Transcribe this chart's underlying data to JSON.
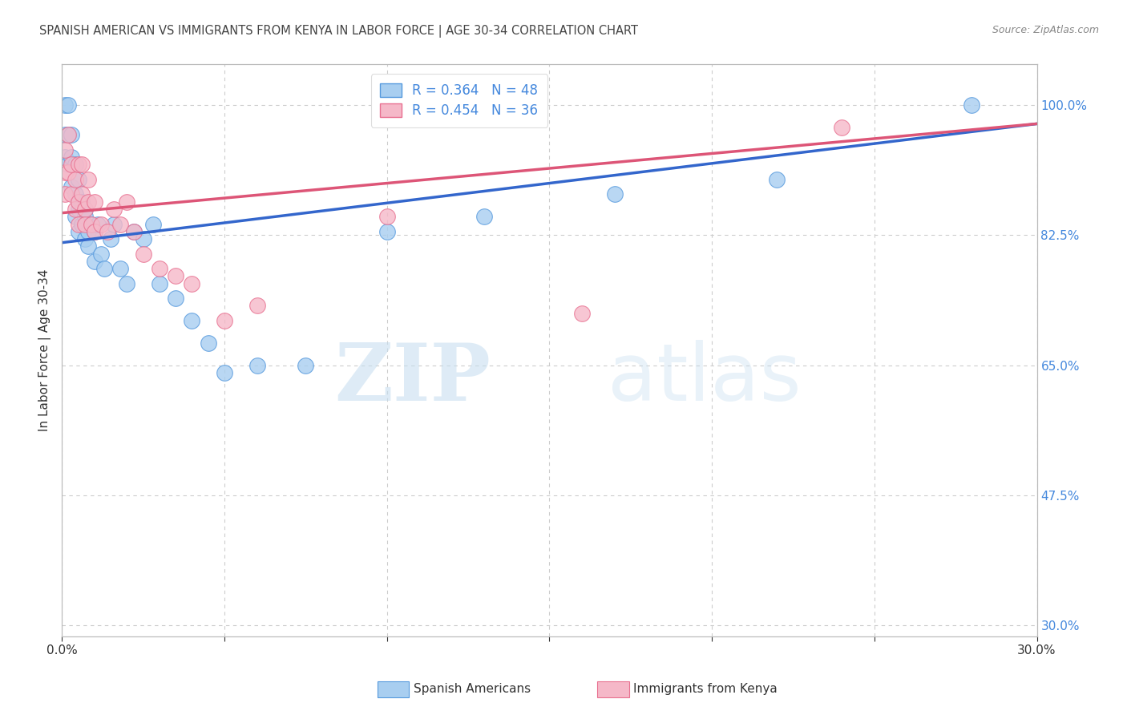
{
  "title": "SPANISH AMERICAN VS IMMIGRANTS FROM KENYA IN LABOR FORCE | AGE 30-34 CORRELATION CHART",
  "source": "Source: ZipAtlas.com",
  "ylabel": "In Labor Force | Age 30-34",
  "xmin": 0.0,
  "xmax": 0.3,
  "ymin": 0.285,
  "ymax": 1.055,
  "yticks": [
    0.3,
    0.475,
    0.65,
    0.825,
    1.0
  ],
  "ytick_labels": [
    "30.0%",
    "47.5%",
    "65.0%",
    "82.5%",
    "100.0%"
  ],
  "xticks": [
    0.0,
    0.05,
    0.1,
    0.15,
    0.2,
    0.25,
    0.3
  ],
  "xtick_labels": [
    "0.0%",
    "",
    "",
    "",
    "",
    "",
    "30.0%"
  ],
  "blue_R": 0.364,
  "blue_N": 48,
  "pink_R": 0.454,
  "pink_N": 36,
  "blue_fill": "#a8cef0",
  "pink_fill": "#f5b8c8",
  "blue_edge": "#5599dd",
  "pink_edge": "#e87090",
  "blue_line_color": "#3366cc",
  "pink_line_color": "#dd5577",
  "legend_blue_label": "Spanish Americans",
  "legend_pink_label": "Immigrants from Kenya",
  "blue_scatter_x": [
    0.001,
    0.001,
    0.001,
    0.002,
    0.002,
    0.002,
    0.003,
    0.003,
    0.003,
    0.004,
    0.004,
    0.004,
    0.005,
    0.005,
    0.005,
    0.005,
    0.006,
    0.006,
    0.007,
    0.007,
    0.007,
    0.008,
    0.008,
    0.009,
    0.01,
    0.01,
    0.011,
    0.012,
    0.013,
    0.015,
    0.016,
    0.018,
    0.02,
    0.022,
    0.025,
    0.028,
    0.03,
    0.035,
    0.04,
    0.045,
    0.05,
    0.06,
    0.075,
    0.1,
    0.13,
    0.17,
    0.22,
    0.28
  ],
  "blue_scatter_y": [
    0.96,
    0.93,
    1.0,
    0.96,
    1.0,
    0.92,
    0.96,
    0.89,
    0.93,
    0.92,
    0.88,
    0.85,
    0.87,
    0.9,
    0.86,
    0.83,
    0.87,
    0.84,
    0.86,
    0.82,
    0.85,
    0.81,
    0.83,
    0.84,
    0.83,
    0.79,
    0.84,
    0.8,
    0.78,
    0.82,
    0.84,
    0.78,
    0.76,
    0.83,
    0.82,
    0.84,
    0.76,
    0.74,
    0.71,
    0.68,
    0.64,
    0.65,
    0.65,
    0.83,
    0.85,
    0.88,
    0.9,
    1.0
  ],
  "pink_scatter_x": [
    0.001,
    0.001,
    0.001,
    0.002,
    0.002,
    0.003,
    0.003,
    0.004,
    0.004,
    0.005,
    0.005,
    0.005,
    0.006,
    0.006,
    0.007,
    0.007,
    0.008,
    0.008,
    0.009,
    0.01,
    0.01,
    0.012,
    0.014,
    0.016,
    0.018,
    0.02,
    0.022,
    0.025,
    0.03,
    0.035,
    0.04,
    0.05,
    0.06,
    0.1,
    0.16,
    0.24
  ],
  "pink_scatter_y": [
    0.94,
    0.91,
    0.88,
    0.96,
    0.91,
    0.88,
    0.92,
    0.86,
    0.9,
    0.92,
    0.87,
    0.84,
    0.92,
    0.88,
    0.86,
    0.84,
    0.9,
    0.87,
    0.84,
    0.87,
    0.83,
    0.84,
    0.83,
    0.86,
    0.84,
    0.87,
    0.83,
    0.8,
    0.78,
    0.77,
    0.76,
    0.71,
    0.73,
    0.85,
    0.72,
    0.97
  ],
  "blue_trendline_x": [
    0.0,
    0.3
  ],
  "blue_trendline_y": [
    0.815,
    0.975
  ],
  "pink_trendline_x": [
    0.0,
    0.3
  ],
  "pink_trendline_y": [
    0.855,
    0.975
  ],
  "watermark_zip": "ZIP",
  "watermark_atlas": "atlas",
  "background_color": "#ffffff",
  "grid_color": "#cccccc",
  "axis_color": "#bbbbbb",
  "right_yaxis_color": "#4488dd",
  "title_color": "#444444",
  "source_color": "#888888",
  "label_color": "#333333"
}
